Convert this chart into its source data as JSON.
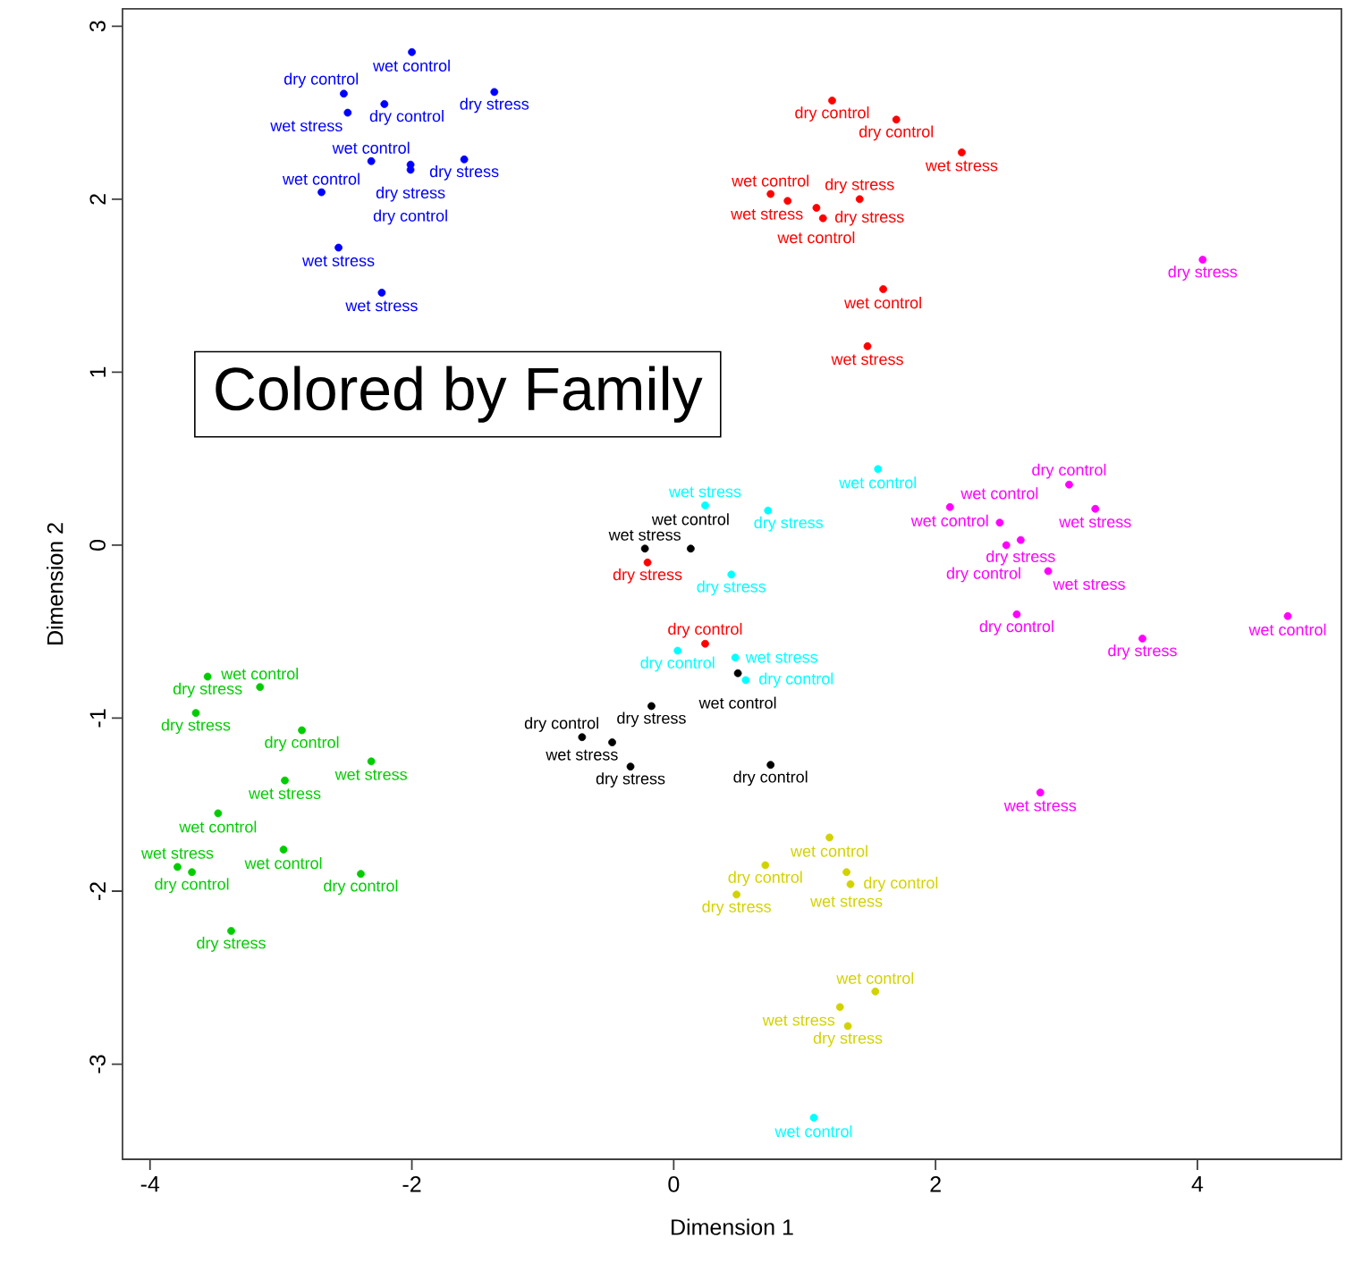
{
  "chart_data": {
    "type": "scatter",
    "xlabel": "Dimension 1",
    "ylabel": "Dimension 2",
    "xlim": [
      -4.21,
      5.1
    ],
    "ylim": [
      -3.55,
      3.1
    ],
    "xticks": [
      -4,
      -2,
      0,
      2,
      4
    ],
    "yticks": [
      -3,
      -2,
      -1,
      0,
      1,
      2,
      3
    ],
    "grid": false,
    "annotations": [
      "Colored by Family"
    ],
    "series": [
      {
        "color": "#0000ff",
        "x": [
          -2.0,
          -2.52,
          -2.21,
          -2.49,
          -1.37,
          -2.31,
          -1.6,
          -2.01,
          -2.01,
          -2.69,
          -2.56,
          -2.23
        ],
        "values": [
          2.85,
          2.61,
          2.55,
          2.5,
          2.62,
          2.22,
          2.23,
          2.2,
          2.17,
          2.04,
          1.72,
          1.46
        ],
        "value_labels": [
          "wet control",
          "dry control",
          "dry control",
          "wet stress",
          "dry stress",
          "wet control",
          "dry stress",
          "dry stress",
          "dry control",
          "wet control",
          "wet stress",
          "wet stress"
        ]
      },
      {
        "color": "#ff0000",
        "x": [
          1.21,
          1.7,
          2.2,
          0.74,
          0.87,
          1.42,
          1.09,
          1.14,
          1.6,
          1.48,
          -0.2,
          0.24
        ],
        "values": [
          2.57,
          2.46,
          2.27,
          2.03,
          1.99,
          2.0,
          1.95,
          1.89,
          1.48,
          1.15,
          -0.1,
          -0.57
        ],
        "value_labels": [
          "dry control",
          "dry control",
          "wet stress",
          "wet control",
          "wet stress",
          "dry stress",
          "wet control",
          "dry stress",
          "wet control",
          "wet stress",
          "dry stress",
          "dry control"
        ]
      },
      {
        "color": "#000000",
        "x": [
          -0.22,
          0.13,
          0.49,
          -0.17,
          -0.7,
          -0.47,
          -0.33,
          0.74
        ],
        "values": [
          -0.02,
          -0.02,
          -0.74,
          -0.93,
          -1.11,
          -1.14,
          -1.28,
          -1.27
        ],
        "value_labels": [
          "wet stress",
          "wet control",
          "wet control",
          "dry stress",
          "wet stress",
          "dry control",
          "dry stress",
          "dry control"
        ]
      },
      {
        "color": "#00ffff",
        "x": [
          1.56,
          0.24,
          0.72,
          0.44,
          0.03,
          0.47,
          0.55,
          1.07
        ],
        "values": [
          0.44,
          0.23,
          0.2,
          -0.17,
          -0.61,
          -0.65,
          -0.78,
          -3.31
        ],
        "value_labels": [
          "wet control",
          "wet stress",
          "dry stress",
          "dry stress",
          "dry control",
          "wet stress",
          "dry control",
          "wet control"
        ]
      },
      {
        "color": "#ff00ff",
        "x": [
          4.04,
          3.02,
          2.11,
          3.22,
          2.49,
          2.65,
          2.54,
          2.86,
          2.62,
          4.69,
          3.58,
          2.8
        ],
        "values": [
          1.65,
          0.35,
          0.22,
          0.21,
          0.13,
          0.03,
          0.0,
          -0.15,
          -0.4,
          -0.41,
          -0.54,
          -1.43
        ],
        "value_labels": [
          "dry stress",
          "dry control",
          "wet control",
          "wet stress",
          "wet control",
          "dry stress",
          "dry control",
          "wet stress",
          "dry control",
          "wet control",
          "dry stress",
          "wet stress"
        ]
      },
      {
        "color": "#00cd00",
        "x": [
          -3.56,
          -3.16,
          -3.65,
          -2.84,
          -2.31,
          -2.97,
          -3.48,
          -2.98,
          -3.79,
          -3.68,
          -2.39,
          -3.38
        ],
        "values": [
          -0.76,
          -0.82,
          -0.97,
          -1.07,
          -1.25,
          -1.36,
          -1.55,
          -1.76,
          -1.86,
          -1.89,
          -1.9,
          -2.23
        ],
        "value_labels": [
          "dry stress",
          "wet control",
          "dry stress",
          "dry control",
          "wet stress",
          "wet stress",
          "wet control",
          "wet control",
          "wet stress",
          "dry control",
          "dry control",
          "dry stress"
        ]
      },
      {
        "color": "#d2d200",
        "x": [
          1.19,
          0.7,
          1.32,
          1.35,
          0.48,
          1.54,
          1.27,
          1.33
        ],
        "values": [
          -1.69,
          -1.85,
          -1.89,
          -1.96,
          -2.02,
          -2.58,
          -2.67,
          -2.78
        ],
        "value_labels": [
          "wet control",
          "dry control",
          "wet stress",
          "dry control",
          "dry stress",
          "wet control",
          "wet stress",
          "dry stress"
        ]
      }
    ]
  }
}
